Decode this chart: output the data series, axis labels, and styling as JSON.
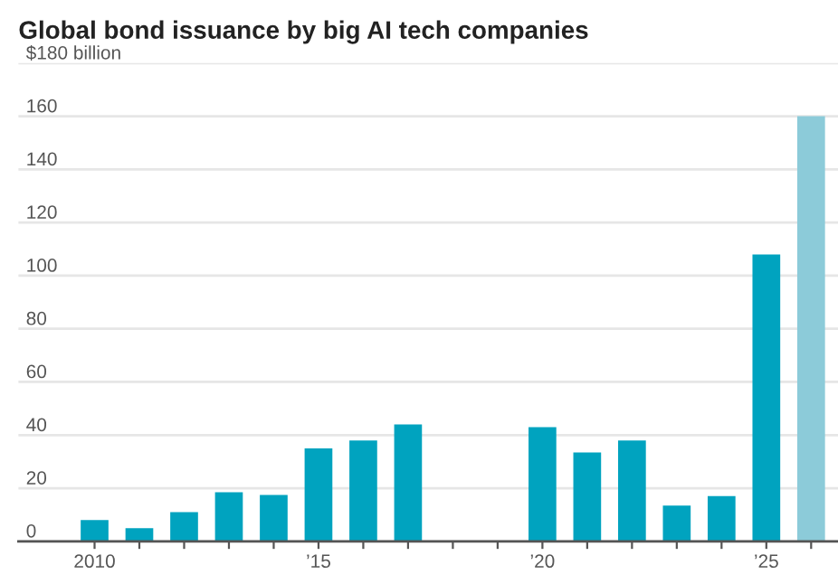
{
  "chart_data": {
    "type": "bar",
    "title": "Global bond issuance by big AI tech companies",
    "categories": [
      "2010",
      null,
      null,
      null,
      null,
      "’15",
      null,
      null,
      null,
      null,
      "’20",
      null,
      null,
      null,
      null,
      "’25",
      null
    ],
    "values": [
      8,
      5,
      11,
      18.5,
      17.5,
      35,
      38,
      44,
      null,
      null,
      43,
      33.5,
      38,
      13.5,
      17,
      108,
      160
    ],
    "colors": [
      "#00a3bf",
      "#00a3bf",
      "#00a3bf",
      "#00a3bf",
      "#00a3bf",
      "#00a3bf",
      "#00a3bf",
      "#00a3bf",
      "#00a3bf",
      "#00a3bf",
      "#00a3bf",
      "#00a3bf",
      "#00a3bf",
      "#00a3bf",
      "#00a3bf",
      "#00a3bf",
      "#8ccbd9"
    ],
    "ylim": [
      0,
      180
    ],
    "yticks": [
      0,
      20,
      40,
      60,
      80,
      100,
      120,
      140,
      160,
      {
        "value": 180,
        "label": "$180 billion"
      }
    ],
    "grid": "y"
  }
}
